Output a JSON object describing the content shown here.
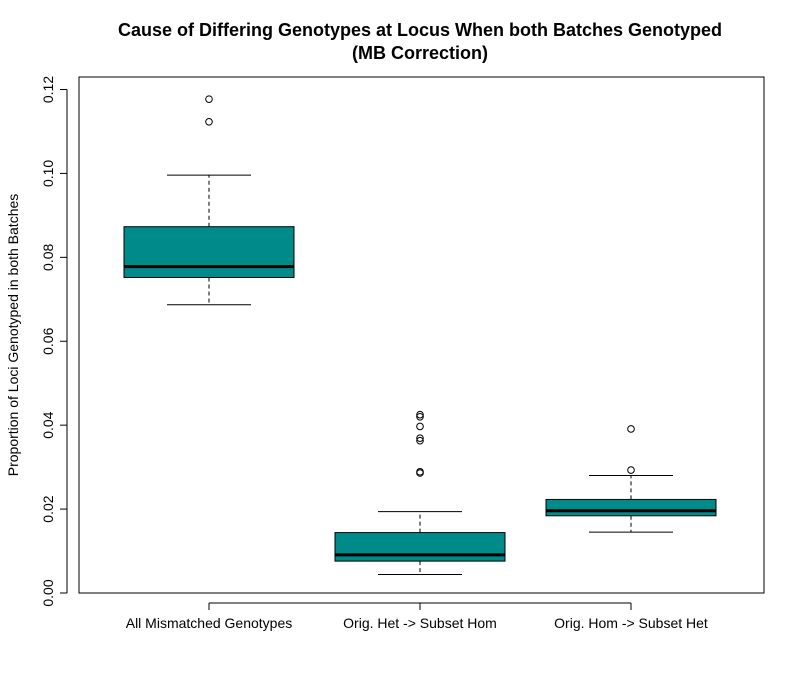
{
  "chart_data": {
    "type": "boxplot",
    "title": "Cause of Differing Genotypes at Locus When both Batches Genotyped",
    "subtitle": "(MB Correction)",
    "xlabel": "",
    "ylabel": "Proportion of Loci Genotyped in both Batches",
    "ylim": [
      0.0,
      0.12
    ],
    "yticks": [
      "0.00",
      "0.02",
      "0.04",
      "0.06",
      "0.08",
      "0.10",
      "0.12"
    ],
    "box_color": "#008B8B",
    "categories": [
      "All Mismatched Genotypes",
      "Orig. Het -> Subset Hom",
      "Orig. Hom -> Subset Het"
    ],
    "boxes": [
      {
        "whisker_low": 0.0687,
        "q1": 0.0752,
        "median": 0.0778,
        "q3": 0.0873,
        "whisker_high": 0.0996,
        "outliers": [
          0.1123,
          0.1177
        ]
      },
      {
        "whisker_low": 0.0044,
        "q1": 0.0076,
        "median": 0.0091,
        "q3": 0.0144,
        "whisker_high": 0.0194,
        "outliers": [
          0.0286,
          0.0289,
          0.0363,
          0.0369,
          0.0397,
          0.042,
          0.0425
        ]
      },
      {
        "whisker_low": 0.0145,
        "q1": 0.0184,
        "median": 0.0196,
        "q3": 0.0223,
        "whisker_high": 0.028,
        "outliers": [
          0.0293,
          0.0391
        ]
      }
    ]
  }
}
